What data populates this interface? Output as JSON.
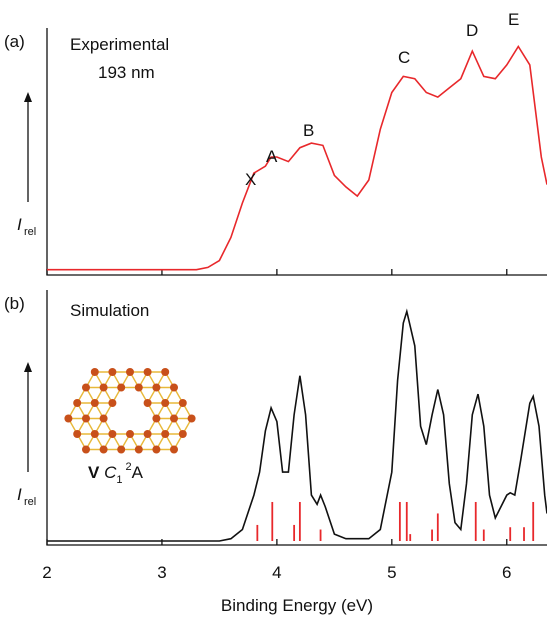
{
  "chart_data": [
    {
      "type": "line",
      "panel_label": "(a)",
      "title": "Experimental",
      "subtitle": "193 nm",
      "y_label": "I",
      "y_label_sub": "rel",
      "annotations": [
        "X",
        "A",
        "B",
        "C",
        "D",
        "E"
      ],
      "x": [
        2.0,
        2.5,
        3.0,
        3.3,
        3.4,
        3.5,
        3.6,
        3.7,
        3.8,
        3.9,
        3.95,
        4.0,
        4.1,
        4.2,
        4.3,
        4.4,
        4.5,
        4.6,
        4.7,
        4.8,
        4.9,
        5.0,
        5.1,
        5.2,
        5.3,
        5.4,
        5.5,
        5.6,
        5.7,
        5.8,
        5.9,
        6.0,
        6.1,
        6.2,
        6.3,
        6.35
      ],
      "series": [
        {
          "color": "#e8282b",
          "values": [
            0.01,
            0.01,
            0.01,
            0.01,
            0.02,
            0.05,
            0.15,
            0.3,
            0.43,
            0.46,
            0.5,
            0.5,
            0.48,
            0.54,
            0.56,
            0.55,
            0.42,
            0.37,
            0.33,
            0.4,
            0.62,
            0.78,
            0.85,
            0.84,
            0.78,
            0.76,
            0.8,
            0.84,
            0.96,
            0.85,
            0.84,
            0.9,
            0.98,
            0.9,
            0.5,
            0.38
          ]
        }
      ],
      "xlim": [
        2,
        6.35
      ],
      "ylim": [
        0,
        1.03
      ]
    },
    {
      "type": "line",
      "panel_label": "(b)",
      "title": "Simulation",
      "y_label": "I",
      "y_label_sub": "rel",
      "structure_label": [
        "V",
        "C",
        "1",
        "2",
        "A"
      ],
      "x": [
        2.0,
        3.5,
        3.6,
        3.7,
        3.8,
        3.85,
        3.9,
        3.95,
        4.0,
        4.05,
        4.1,
        4.15,
        4.2,
        4.25,
        4.3,
        4.35,
        4.38,
        4.42,
        4.5,
        4.6,
        4.8,
        4.9,
        5.0,
        5.05,
        5.1,
        5.13,
        5.2,
        5.25,
        5.3,
        5.35,
        5.4,
        5.45,
        5.5,
        5.55,
        5.6,
        5.65,
        5.7,
        5.75,
        5.8,
        5.85,
        5.9,
        5.95,
        6.0,
        6.03,
        6.07,
        6.12,
        6.2,
        6.23,
        6.28,
        6.33,
        6.35
      ],
      "series": [
        {
          "color": "#111111",
          "values": [
            0,
            0,
            0.01,
            0.05,
            0.2,
            0.3,
            0.48,
            0.58,
            0.52,
            0.3,
            0.3,
            0.55,
            0.72,
            0.55,
            0.2,
            0.16,
            0.2,
            0.15,
            0.03,
            0.01,
            0.01,
            0.05,
            0.3,
            0.7,
            0.95,
            1.0,
            0.85,
            0.5,
            0.42,
            0.55,
            0.66,
            0.55,
            0.25,
            0.08,
            0.05,
            0.25,
            0.55,
            0.64,
            0.5,
            0.2,
            0.1,
            0.15,
            0.2,
            0.21,
            0.2,
            0.35,
            0.6,
            0.63,
            0.5,
            0.2,
            0.12
          ]
        }
      ],
      "sticks": {
        "color": "#e8282b",
        "x": [
          3.83,
          3.96,
          4.15,
          4.2,
          4.38,
          5.07,
          5.13,
          5.16,
          5.35,
          5.4,
          5.73,
          5.8,
          6.03,
          6.15,
          6.23
        ],
        "values": [
          0.07,
          0.17,
          0.07,
          0.17,
          0.05,
          0.17,
          0.17,
          0.03,
          0.05,
          0.12,
          0.17,
          0.05,
          0.06,
          0.06,
          0.17
        ]
      },
      "xlim": [
        2,
        6.35
      ],
      "ylim": [
        0,
        1.05
      ],
      "xticks": [
        2,
        3,
        4,
        5,
        6
      ],
      "x_label": "Binding Energy (eV)"
    }
  ]
}
